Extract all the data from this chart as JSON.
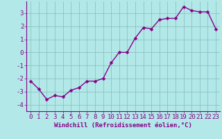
{
  "x": [
    0,
    1,
    2,
    3,
    4,
    5,
    6,
    7,
    8,
    9,
    10,
    11,
    12,
    13,
    14,
    15,
    16,
    17,
    18,
    19,
    20,
    21,
    22,
    23
  ],
  "y": [
    -2.2,
    -2.8,
    -3.6,
    -3.3,
    -3.4,
    -2.9,
    -2.7,
    -2.2,
    -2.2,
    -2.0,
    -0.8,
    0.0,
    0.0,
    1.1,
    1.9,
    1.8,
    2.5,
    2.6,
    2.6,
    3.5,
    3.2,
    3.1,
    3.1,
    1.8
  ],
  "line_color": "#880088",
  "marker_color": "#880088",
  "bg_color": "#b2e8e8",
  "grid_color": "#88bbbb",
  "axis_color": "#880088",
  "tick_color": "#880088",
  "xlabel": "Windchill (Refroidissement éolien,°C)",
  "ylim": [
    -4.5,
    3.9
  ],
  "xlim": [
    -0.5,
    23.5
  ],
  "yticks": [
    -4,
    -3,
    -2,
    -1,
    0,
    1,
    2,
    3
  ],
  "xticks": [
    0,
    1,
    2,
    3,
    4,
    5,
    6,
    7,
    8,
    9,
    10,
    11,
    12,
    13,
    14,
    15,
    16,
    17,
    18,
    19,
    20,
    21,
    22,
    23
  ],
  "font_family": "monospace",
  "tick_fontsize": 6.5,
  "xlabel_fontsize": 6.5,
  "linewidth": 1.0,
  "markersize": 2.5
}
